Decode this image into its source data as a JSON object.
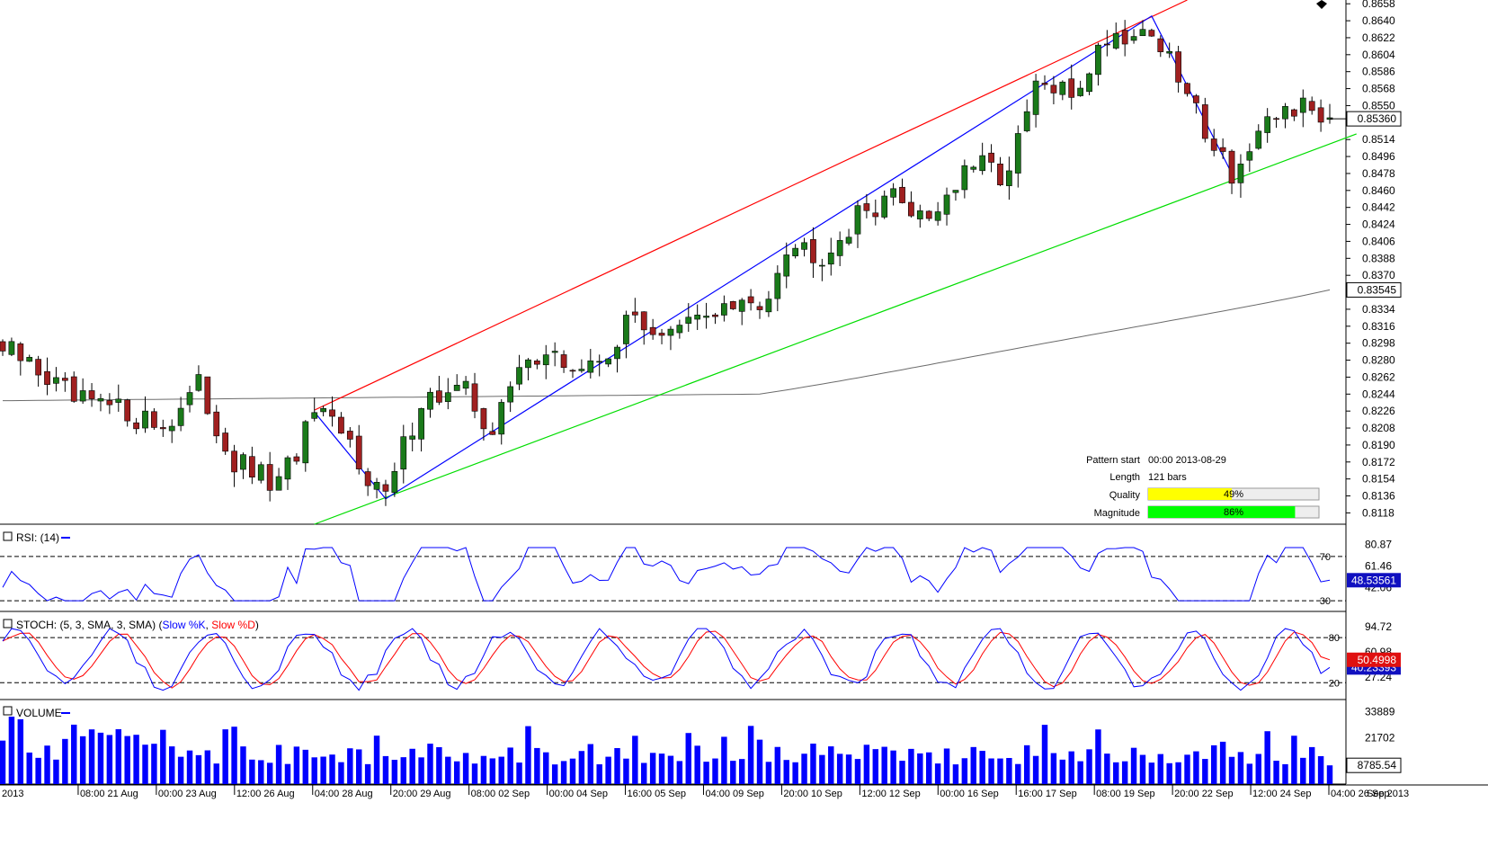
{
  "chart_data": {
    "type": "candlestick",
    "title": "",
    "series_count": 150,
    "price_axis": {
      "ticks": [
        "0.8658",
        "0.8640",
        "0.8622",
        "0.8604",
        "0.8586",
        "0.8568",
        "0.8550",
        "0.8514",
        "0.8496",
        "0.8478",
        "0.8460",
        "0.8442",
        "0.8424",
        "0.8406",
        "0.8388",
        "0.8370",
        "0.8334",
        "0.8316",
        "0.8298",
        "0.8280",
        "0.8262",
        "0.8244",
        "0.8226",
        "0.8208",
        "0.8190",
        "0.8172",
        "0.8154",
        "0.8136",
        "0.8118"
      ],
      "ylim": [
        0.8106,
        0.8662
      ],
      "current_price": "0.85360",
      "ma_value": "0.83545"
    },
    "time_axis": {
      "labels": [
        "2013",
        "08:00 21 Aug",
        "00:00 23 Aug",
        "12:00 26 Aug",
        "04:00 28 Aug",
        "20:00 29 Aug",
        "08:00 02 Sep",
        "00:00 04 Sep",
        "16:00 05 Sep",
        "04:00 09 Sep",
        "20:00 10 Sep",
        "12:00 12 Sep",
        "00:00 16 Sep",
        "16:00 17 Sep",
        "08:00 19 Sep",
        "20:00 22 Sep",
        "12:00 24 Sep",
        "04:00 26 Sep",
        "Sep 2013"
      ]
    },
    "anchors": [
      {
        "bar": 0,
        "price": 0.829
      },
      {
        "bar": 4,
        "price": 0.827
      },
      {
        "bar": 8,
        "price": 0.8235
      },
      {
        "bar": 14,
        "price": 0.8225
      },
      {
        "bar": 18,
        "price": 0.821
      },
      {
        "bar": 22,
        "price": 0.825
      },
      {
        "bar": 26,
        "price": 0.817
      },
      {
        "bar": 31,
        "price": 0.8145
      },
      {
        "bar": 35,
        "price": 0.8222
      },
      {
        "bar": 39,
        "price": 0.819
      },
      {
        "bar": 43,
        "price": 0.8133
      },
      {
        "bar": 47,
        "price": 0.824
      },
      {
        "bar": 52,
        "price": 0.8245
      },
      {
        "bar": 55,
        "price": 0.8205
      },
      {
        "bar": 59,
        "price": 0.829
      },
      {
        "bar": 63,
        "price": 0.8275
      },
      {
        "bar": 66,
        "price": 0.827
      },
      {
        "bar": 71,
        "price": 0.8325
      },
      {
        "bar": 75,
        "price": 0.8305
      },
      {
        "bar": 80,
        "price": 0.8335
      },
      {
        "bar": 85,
        "price": 0.8335
      },
      {
        "bar": 88,
        "price": 0.8405
      },
      {
        "bar": 92,
        "price": 0.8395
      },
      {
        "bar": 96,
        "price": 0.843
      },
      {
        "bar": 99,
        "price": 0.8455
      },
      {
        "bar": 104,
        "price": 0.8435
      },
      {
        "bar": 109,
        "price": 0.8485
      },
      {
        "bar": 113,
        "price": 0.8478
      },
      {
        "bar": 116,
        "price": 0.857
      },
      {
        "bar": 120,
        "price": 0.856
      },
      {
        "bar": 124,
        "price": 0.8625
      },
      {
        "bar": 129,
        "price": 0.863
      },
      {
        "bar": 133,
        "price": 0.856
      },
      {
        "bar": 138,
        "price": 0.848
      },
      {
        "bar": 141,
        "price": 0.851
      },
      {
        "bar": 144,
        "price": 0.855
      },
      {
        "bar": 149,
        "price": 0.854
      }
    ],
    "moving_average": {
      "start": 0.8237,
      "mid": 0.8244,
      "end": 0.83545
    },
    "pattern_lines": {
      "resistance": {
        "from": {
          "bar": 35,
          "price": 0.8227
        },
        "to": {
          "bar": 133,
          "price": 0.8662
        },
        "color": "#ff0000"
      },
      "support": {
        "from": {
          "bar": 35,
          "price": 0.8106
        },
        "to": {
          "bar": 152,
          "price": 0.852
        },
        "color": "#00dd00"
      },
      "zigzag": [
        {
          "bar": 35,
          "price": 0.8225
        },
        {
          "bar": 43,
          "price": 0.8133
        },
        {
          "bar": 129,
          "price": 0.8645
        },
        {
          "bar": 138,
          "price": 0.8478
        }
      ],
      "zigzag_color": "#0000ff"
    },
    "pattern_info": {
      "start_label": "Pattern start",
      "start_value": "00:00 2013-08-29",
      "length_label": "Length",
      "length_value": "121 bars",
      "quality_label": "Quality",
      "quality_value": "49%",
      "quality_fraction": 0.49,
      "magnitude_label": "Magnitude",
      "magnitude_value": "86%",
      "magnitude_fraction": 0.86,
      "quality_color": "#ffff00",
      "magnitude_color": "#00ff00"
    },
    "rsi_panel": {
      "label": "RSI: (14)",
      "ticks": [
        "80.87",
        "61.46",
        "42.06"
      ],
      "ylim": [
        22,
        95
      ],
      "level_high": "70",
      "level_low": "30",
      "level_high_value": 70,
      "level_low_value": 30,
      "current": "48.53561",
      "color": "#0000ff"
    },
    "stoch_panel": {
      "label_prefix": "STOCH: (5, 3, SMA, 3, SMA) (",
      "k_label": "Slow %K",
      "label_sep": ", ",
      "d_label": "Slow %D",
      "label_suffix": ")",
      "ticks": [
        "94.72",
        "60.98",
        "27.24"
      ],
      "ylim": [
        0,
        110
      ],
      "level_high": "80",
      "level_low": "20",
      "level_high_value": 80,
      "level_low_value": 20,
      "k_current": "40.23393",
      "d_current": "50.4998",
      "k_color": "#0000ff",
      "d_color": "#ff0000"
    },
    "volume_panel": {
      "label": "VOLUME",
      "ticks": [
        "33889",
        "21702"
      ],
      "ylim": [
        0,
        38000
      ],
      "current": "8785.54",
      "color": "#0000ff"
    },
    "colors": {
      "bull": "#1a7a1a",
      "bear": "#a02020",
      "ma": "#6b6b6b",
      "panel_bg": "#ffffff",
      "current_tag_bg": "#1010c0",
      "stoch_d_tag_bg": "#e01010"
    }
  }
}
